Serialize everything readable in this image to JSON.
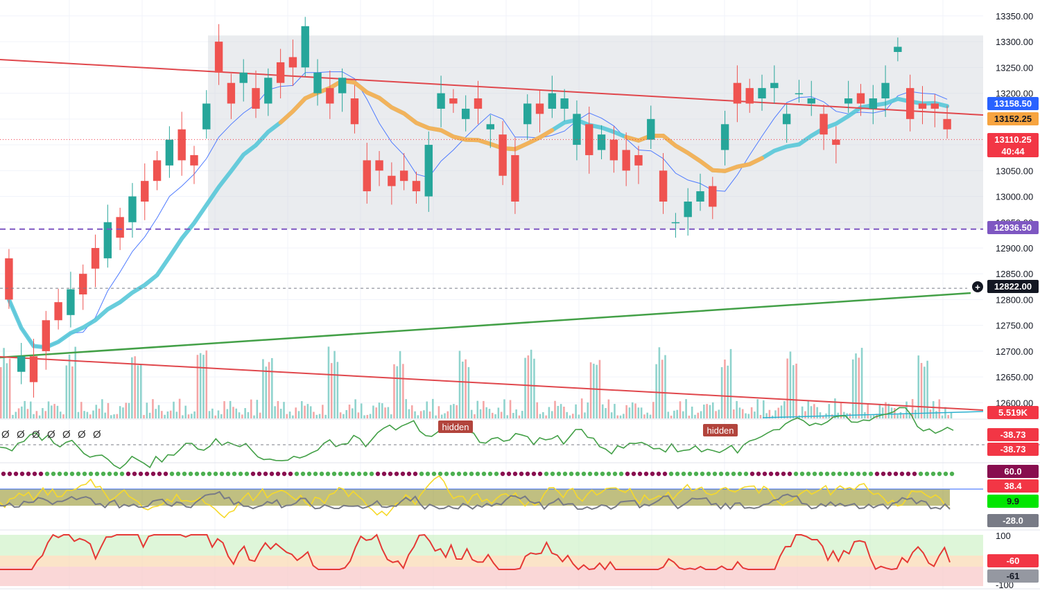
{
  "chart_data": {
    "type": "candlestick",
    "instrument_panel": {
      "price_axis_ticks": [
        13350,
        13300,
        13250,
        13200,
        13150,
        13100,
        13050,
        13000,
        12950,
        12900,
        12850,
        12800,
        12750,
        12700,
        12650,
        12600
      ],
      "ylim": [
        12575,
        13370
      ],
      "price_tags": [
        {
          "id": "ma-blue",
          "text": "13158.50",
          "value": 13158.5,
          "color": "#2962ff",
          "text_color": "#ffffff"
        },
        {
          "id": "ma-orange",
          "text": "13152.25",
          "value": 13152.25,
          "color": "#f7a440",
          "text_color": "#131722"
        },
        {
          "id": "last-price",
          "text": "13110.25",
          "countdown": "40:44",
          "value": 13110.25,
          "color": "#f23645",
          "text_color": "#ffffff"
        },
        {
          "id": "range-low",
          "text": "12936.50",
          "value": 12936.5,
          "color": "#7e57c2",
          "text_color": "#ffffff"
        },
        {
          "id": "crosshair",
          "text": "12822.00",
          "value": 12822.0,
          "color": "#131722",
          "text_color": "#ffffff"
        }
      ],
      "volume_tag": {
        "text": "5.519K",
        "color": "#f23645"
      },
      "range_box": {
        "high": 13312,
        "low": 12936.5
      },
      "candles": [
        [
          12880,
          12800
        ],
        [
          12660,
          12690
        ],
        [
          12690,
          12640
        ],
        [
          12760,
          12700
        ],
        [
          12795,
          12760
        ],
        [
          12770,
          12820
        ],
        [
          12850,
          12810
        ],
        [
          12900,
          12860
        ],
        [
          12880,
          12950
        ],
        [
          12960,
          12920
        ],
        [
          12950,
          13000
        ],
        [
          13030,
          12990
        ],
        [
          13070,
          13030
        ],
        [
          13060,
          13110
        ],
        [
          13130,
          13070
        ],
        [
          13080,
          13060
        ],
        [
          13130,
          13180
        ],
        [
          13300,
          13240
        ],
        [
          13220,
          13180
        ],
        [
          13220,
          13240
        ],
        [
          13210,
          13170
        ],
        [
          13180,
          13230
        ],
        [
          13260,
          13220
        ],
        [
          13270,
          13250
        ],
        [
          13250,
          13330
        ],
        [
          13200,
          13240
        ],
        [
          13210,
          13180
        ],
        [
          13200,
          13230
        ],
        [
          13190,
          13140
        ],
        [
          13070,
          13010
        ],
        [
          13070,
          13050
        ],
        [
          13040,
          13020
        ],
        [
          13050,
          13030
        ],
        [
          13030,
          13010
        ],
        [
          13000,
          13100
        ],
        [
          13170,
          13200
        ],
        [
          13190,
          13180
        ],
        [
          13150,
          13170
        ],
        [
          13190,
          13170
        ],
        [
          13130,
          13140
        ],
        [
          13120,
          13040
        ],
        [
          13080,
          12990
        ],
        [
          13140,
          13180
        ],
        [
          13180,
          13160
        ],
        [
          13170,
          13200
        ],
        [
          13170,
          13190
        ],
        [
          13100,
          13160
        ],
        [
          13140,
          13080
        ],
        [
          13090,
          13120
        ],
        [
          13110,
          13070
        ],
        [
          13090,
          13050
        ],
        [
          13080,
          13060
        ],
        [
          13110,
          13150
        ],
        [
          13050,
          12990
        ],
        [
          12950,
          12950
        ],
        [
          12960,
          12990
        ],
        [
          12990,
          13010
        ],
        [
          13020,
          12980
        ],
        [
          13090,
          13140
        ],
        [
          13220,
          13180
        ],
        [
          13210,
          13180
        ],
        [
          13190,
          13210
        ],
        [
          13210,
          13220
        ],
        [
          13140,
          13160
        ],
        [
          13200,
          13200
        ],
        [
          13180,
          13190
        ],
        [
          13160,
          13120
        ],
        [
          13110,
          13100
        ],
        [
          13180,
          13190
        ],
        [
          13200,
          13180
        ],
        [
          13170,
          13190
        ],
        [
          13190,
          13220
        ],
        [
          13280,
          13290
        ],
        [
          13210,
          13150
        ],
        [
          13180,
          13170
        ],
        [
          13180,
          13170
        ],
        [
          13150,
          13130
        ]
      ],
      "volume_bar_count": 320
    },
    "oscillator_1": {
      "hidden_labels": [
        "hidden",
        "hidden"
      ],
      "divergence_markers": [
        "Ø",
        "Ø",
        "Ø",
        "Ø",
        "Ø",
        "Ø",
        "Ø"
      ],
      "value_tags": [
        {
          "text": "-38.73",
          "color": "#f23645"
        },
        {
          "text": "-38.73",
          "color": "#f23645"
        }
      ]
    },
    "oscillator_2": {
      "value_tags": [
        {
          "text": "60.0",
          "color": "#880e4f"
        },
        {
          "text": "38.4",
          "color": "#f23645"
        },
        {
          "text": "9.9",
          "color": "#00e600"
        },
        {
          "text": "-28.0",
          "color": "#787b86"
        }
      ]
    },
    "oscillator_3": {
      "axis_labels": [
        "100",
        "-100"
      ],
      "value_tags": [
        {
          "text": "-60",
          "color": "#f23645"
        },
        {
          "text": "-61",
          "color": "#9598a1"
        }
      ]
    }
  }
}
